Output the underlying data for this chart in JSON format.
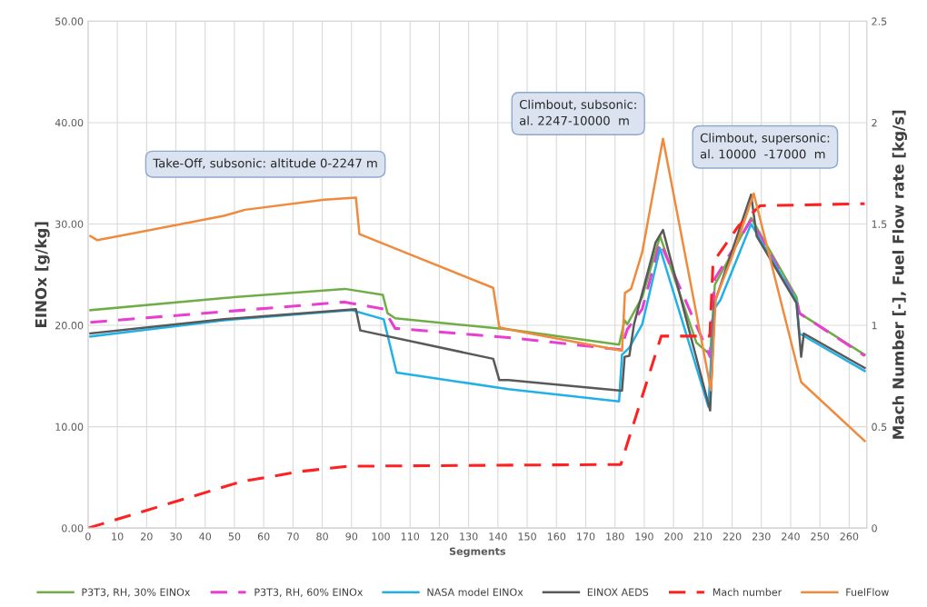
{
  "chart_data": {
    "type": "line",
    "xlabel": "Segments",
    "ylabel": "EINOx [g/kg]",
    "y2label": "Mach Number [-], Fuel Flow rate [kg/s]",
    "xlim": [
      0,
      266
    ],
    "xticks": [
      0,
      10,
      20,
      30,
      40,
      50,
      60,
      70,
      80,
      90,
      100,
      110,
      120,
      130,
      140,
      150,
      160,
      170,
      180,
      190,
      200,
      210,
      220,
      230,
      240,
      250,
      260
    ],
    "ylim": [
      0,
      50
    ],
    "yticks": [
      {
        "value": 0,
        "label": "0.00"
      },
      {
        "value": 10,
        "label": "10.00"
      },
      {
        "value": 20,
        "label": "20.00"
      },
      {
        "value": 30,
        "label": "30.00"
      },
      {
        "value": 40,
        "label": "40.00"
      },
      {
        "value": 50,
        "label": "50.00"
      }
    ],
    "y2lim": [
      0,
      2.5
    ],
    "y2ticks": [
      0,
      0.5,
      1,
      1.5,
      2,
      2.5
    ],
    "grid": true,
    "legend": "bottom",
    "annotations": [
      "Take-Off, subsonic: altitude 0-2247 m",
      "Climbout, subsonic:\nal. 2247-10000  m",
      "Climbout, supersonic:\nal. 10000  -17000  m"
    ],
    "series": [
      {
        "name": "P3T3, RH, 30% EINOx",
        "color": "#70ad47",
        "line_style": "solid",
        "x": [
          0.8,
          46.4,
          87.7,
          100.7,
          102.3,
          104.9,
          143.6,
          181.4,
          183.3,
          184.2,
          189.3,
          195.4,
          207.8,
          212.5,
          214.1,
          226.5,
          242,
          243,
          265.3
        ],
        "values": [
          21.5,
          22.7,
          23.6,
          23.0,
          21.2,
          20.7,
          19.6,
          18.1,
          20.5,
          20.1,
          22.8,
          28.8,
          18.3,
          17.1,
          24.0,
          30.6,
          22.8,
          21.2,
          17.1
        ]
      },
      {
        "name": "P3T3, RH, 60% EINOx",
        "color": "#e83fd0",
        "line_style": "dashed",
        "x": [
          0.8,
          87.7,
          101,
          104.9,
          143.6,
          182,
          184.2,
          189.3,
          195.4,
          212.5,
          214.1,
          226.5,
          242,
          243,
          265.3
        ],
        "values": [
          20.3,
          22.3,
          21.6,
          19.7,
          18.8,
          17.6,
          19.6,
          21.6,
          28.2,
          16.9,
          24.6,
          30.4,
          22.5,
          21.2,
          17.0
        ]
      },
      {
        "name": "NASA model EINOx",
        "color": "#21b1e6",
        "line_style": "solid",
        "x": [
          0.8,
          46.4,
          90,
          101,
          105.4,
          143.6,
          181.4,
          182.4,
          184.9,
          189.3,
          195.4,
          211.9,
          213.8,
          216,
          226.5,
          242,
          243,
          265.3
        ],
        "values": [
          18.9,
          20.5,
          21.5,
          20.6,
          15.35,
          13.7,
          12.5,
          17.1,
          17.8,
          20.1,
          27.6,
          12.0,
          21.6,
          22.5,
          30.0,
          22.4,
          19.2,
          15.5
        ]
      },
      {
        "name": "EINOX AEDS",
        "color": "#595959",
        "line_style": "solid",
        "x": [
          0.8,
          46.4,
          91.5,
          93,
          138.4,
          140.5,
          143.6,
          182.4,
          183.3,
          184.9,
          186.5,
          193.9,
          196.4,
          212.5,
          214.1,
          226.5,
          228.4,
          242,
          243.6,
          244.5,
          265.3
        ],
        "values": [
          19.2,
          20.6,
          21.6,
          19.5,
          16.7,
          14.6,
          14.6,
          13.55,
          16.9,
          17.0,
          20.1,
          28.2,
          29.4,
          11.6,
          22.3,
          32.9,
          28.8,
          22.2,
          16.9,
          19.2,
          15.8
        ]
      },
      {
        "name": "Mach number",
        "color": "#ff2020",
        "line_style": "dashed",
        "axis": "y2",
        "x": [
          0,
          52.3,
          72.4,
          88.8,
          182,
          183.3,
          195.8,
          212.4,
          213.5,
          222.2,
          229.6,
          265.3
        ],
        "values": [
          0,
          0.229,
          0.279,
          0.305,
          0.314,
          0.375,
          0.947,
          0.947,
          1.31,
          1.49,
          1.59,
          1.6
        ]
      },
      {
        "name": "FuelFlow",
        "color": "#f08a3c",
        "line_style": "solid",
        "axis": "y2",
        "x": [
          0.8,
          3.2,
          46.4,
          53.6,
          80.7,
          91.5,
          92.7,
          138.4,
          140.5,
          143.6,
          182.4,
          183.4,
          185.5,
          189.3,
          196.4,
          212.8,
          214.4,
          220.3,
          227.4,
          243.6,
          265.3
        ],
        "values": [
          1.44,
          1.42,
          1.54,
          1.57,
          1.62,
          1.63,
          1.45,
          1.185,
          0.99,
          0.98,
          0.875,
          1.16,
          1.18,
          1.36,
          1.92,
          0.68,
          1.13,
          1.35,
          1.65,
          0.72,
          0.43
        ]
      }
    ]
  }
}
